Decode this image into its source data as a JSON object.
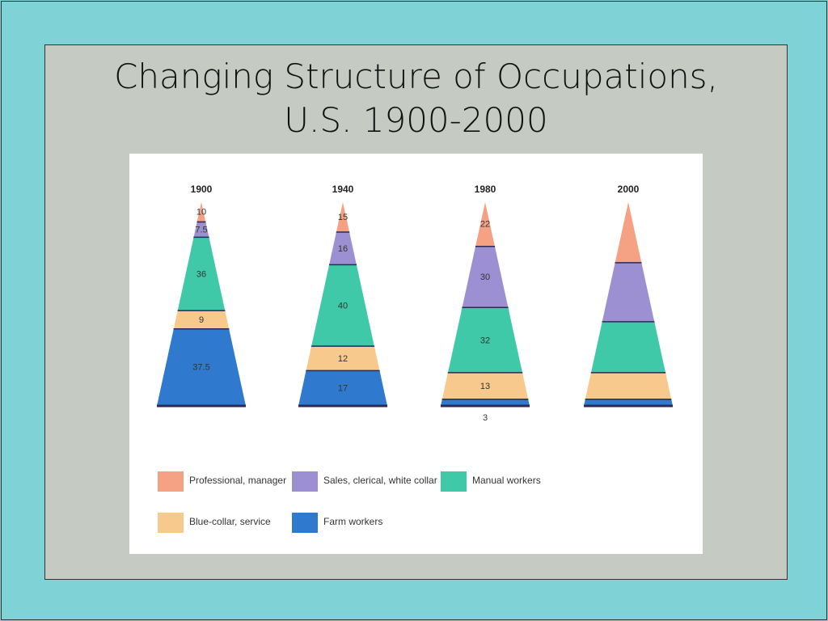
{
  "title_lines": [
    "Changing Structure of Occupations,",
    "U.S. 1900-2000"
  ],
  "legend": [
    {
      "name": "Professional, manager",
      "color": "#f4a283"
    },
    {
      "name": "Sales, clerical, white collar",
      "color": "#9d90d2"
    },
    {
      "name": "Manual workers",
      "color": "#3fc9a9"
    },
    {
      "name": "Blue-collar, service",
      "color": "#f8c98d"
    },
    {
      "name": "Farm workers",
      "color": "#2f79cf"
    }
  ],
  "chart_data": [
    {
      "type": "pyramid",
      "title": "1900",
      "values": [
        10,
        7.5,
        36,
        9,
        37.5
      ],
      "data_labels": true
    },
    {
      "type": "pyramid",
      "title": "1940",
      "values": [
        15,
        16,
        40,
        12,
        17
      ],
      "data_labels": true
    },
    {
      "type": "pyramid",
      "title": "1980",
      "values": [
        22,
        30,
        32,
        13,
        3
      ],
      "data_labels": true
    },
    {
      "type": "pyramid",
      "title": "2000",
      "values": [
        30,
        29,
        25,
        13,
        3
      ],
      "data_labels": false
    }
  ]
}
